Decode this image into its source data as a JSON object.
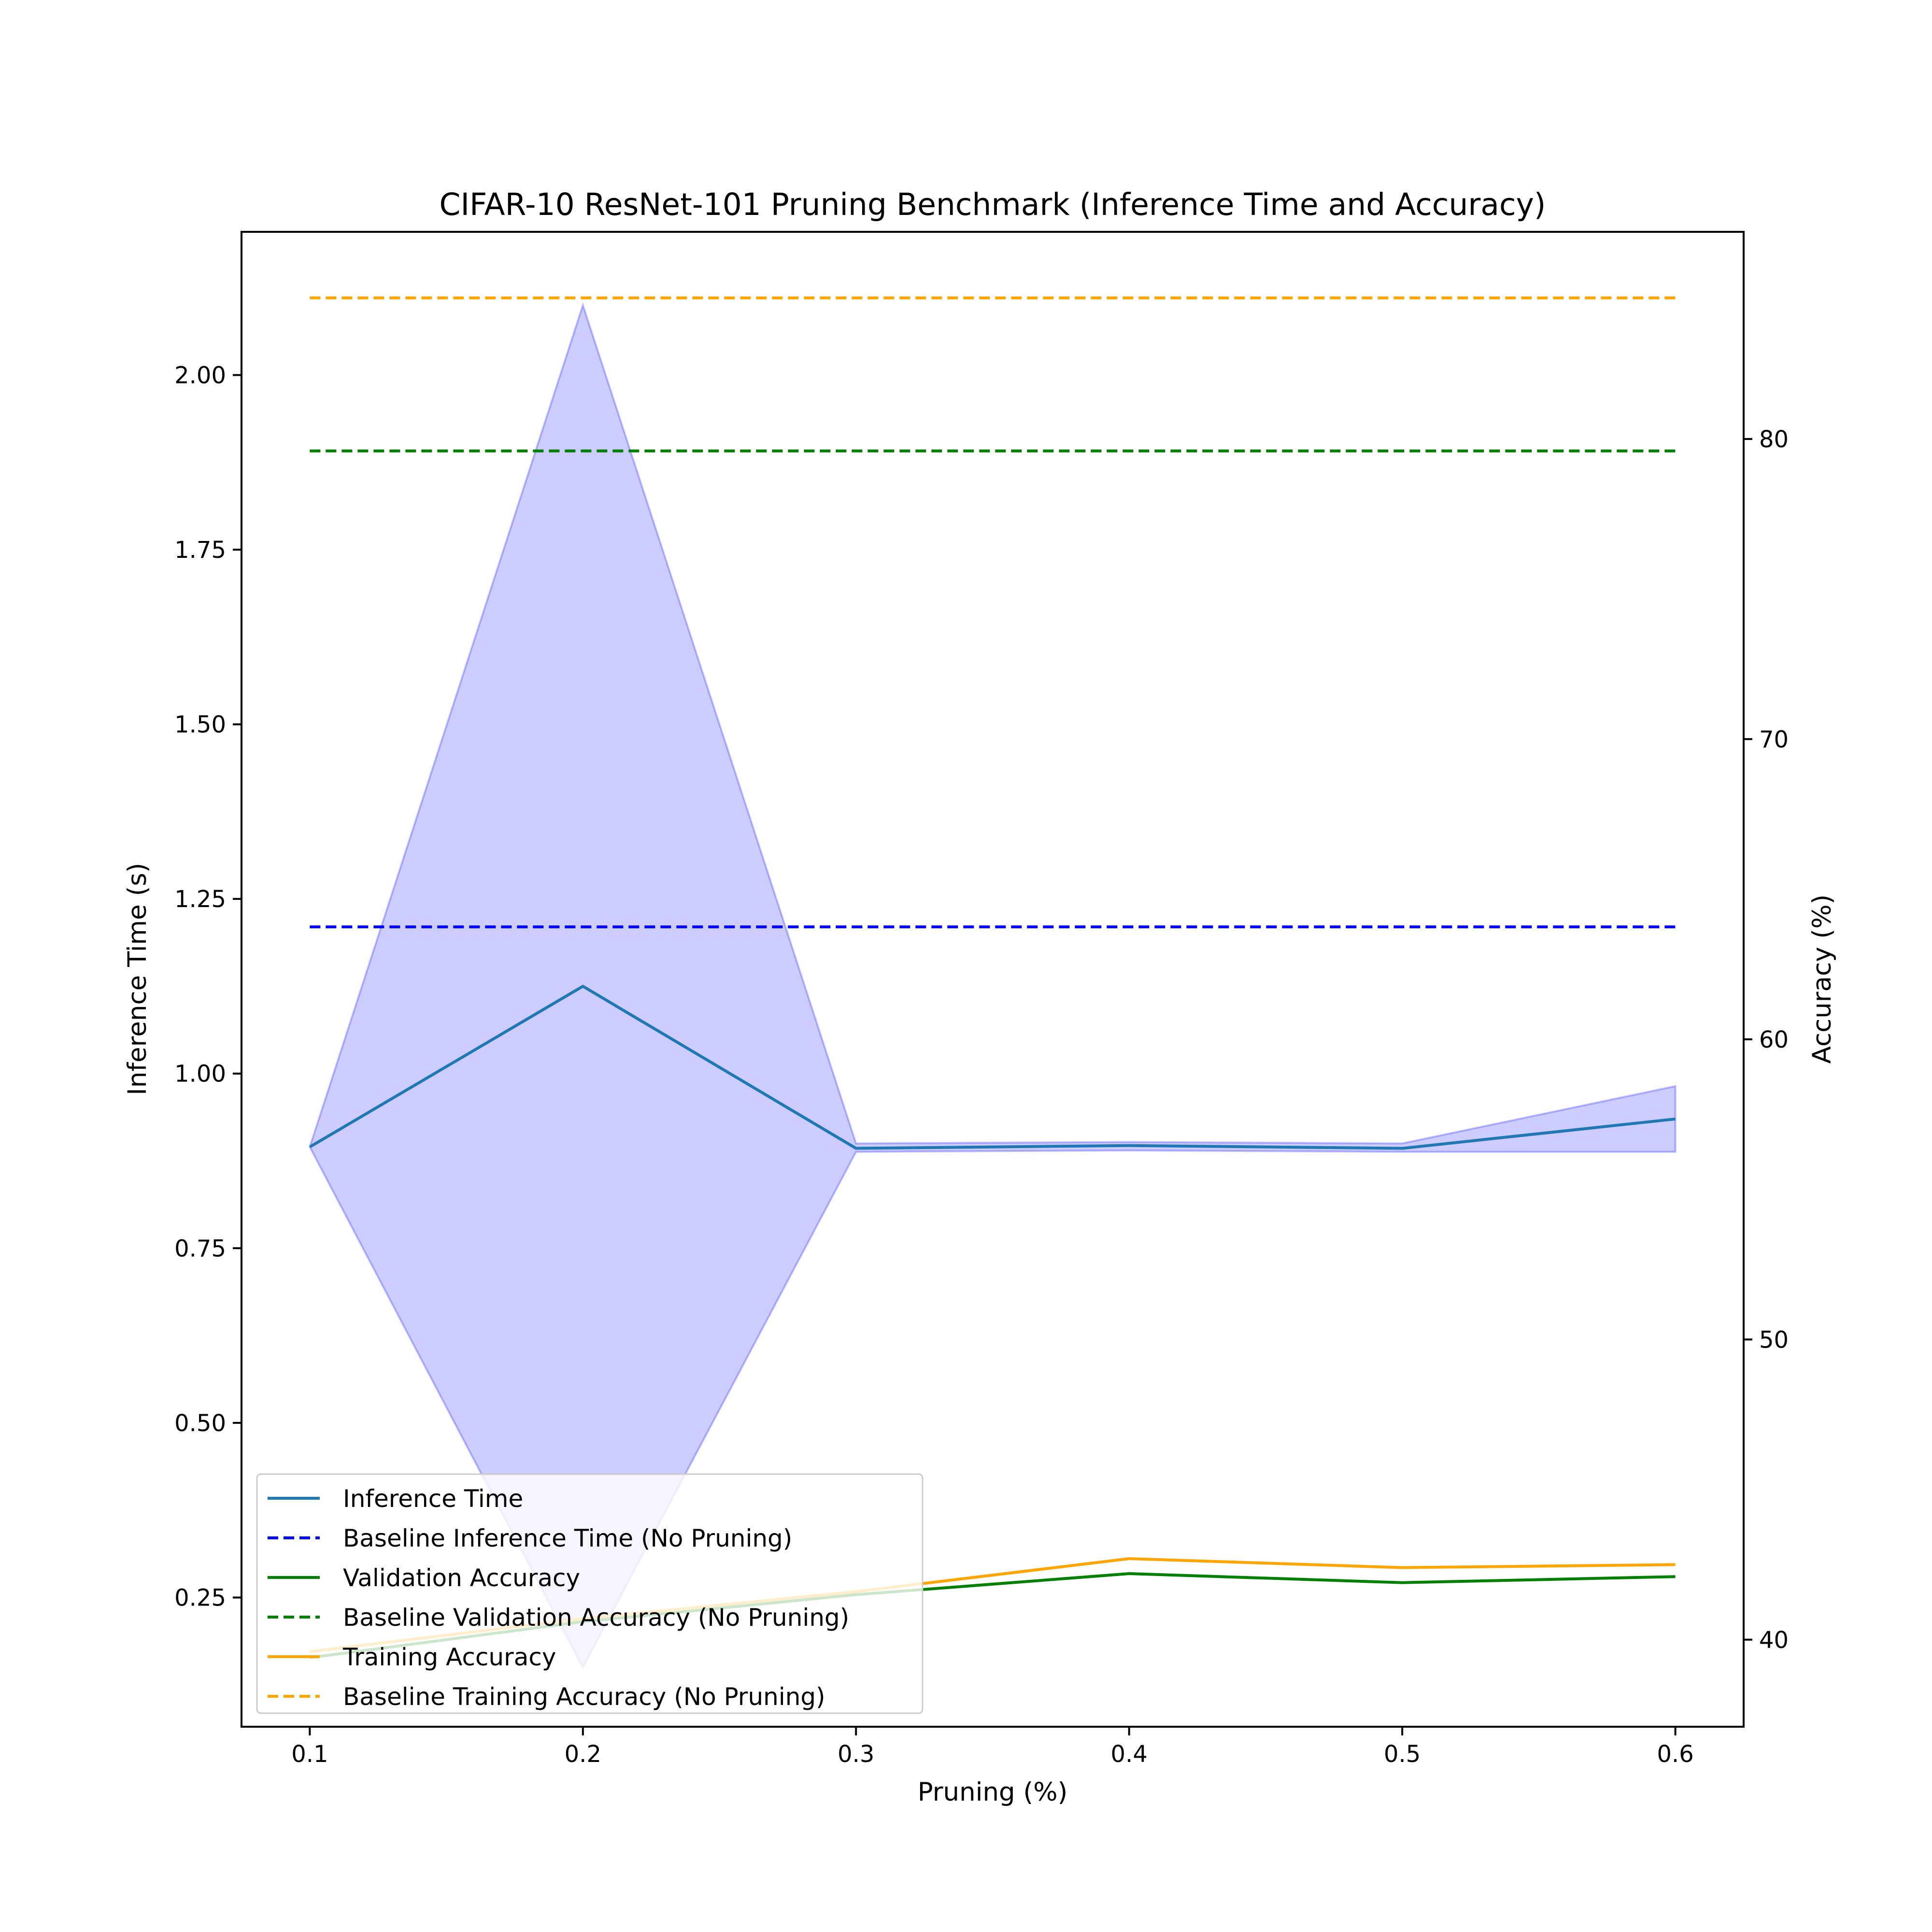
{
  "chart_data": {
    "type": "line",
    "title": "CIFAR-10 ResNet-101 Pruning Benchmark (Inference Time and Accuracy)",
    "xlabel": "Pruning (%)",
    "ylabel_left": "Inference Time (s)",
    "ylabel_right": "Accuracy (%)",
    "x": [
      0.1,
      0.2,
      0.3,
      0.4,
      0.5,
      0.6
    ],
    "x_ticks": [
      "0.1",
      "0.2",
      "0.3",
      "0.4",
      "0.5",
      "0.6"
    ],
    "xlim": [
      0.075,
      0.625
    ],
    "ylim_left": [
      0.065,
      2.205
    ],
    "ylim_right": [
      37.1,
      86.9
    ],
    "yticks_left": [
      "0.25",
      "0.50",
      "0.75",
      "1.00",
      "1.25",
      "1.50",
      "1.75",
      "2.00"
    ],
    "yticks_right": [
      "40",
      "50",
      "60",
      "70",
      "80"
    ],
    "grid": false,
    "legend_position": "lower-left",
    "series": [
      {
        "name": "Inference Time",
        "axis": "left",
        "style": "solid",
        "color": "#1f77b4",
        "values": [
          0.895,
          1.125,
          0.893,
          0.897,
          0.893,
          0.935
        ]
      },
      {
        "name": "Baseline Inference Time (No Pruning)",
        "axis": "left",
        "style": "dashed",
        "color": "#0000ff",
        "values": [
          1.21,
          1.21,
          1.21,
          1.21,
          1.21,
          1.21
        ]
      },
      {
        "name": "Validation Accuracy",
        "axis": "right",
        "style": "solid",
        "color": "#008000",
        "values": [
          39.4,
          40.6,
          41.5,
          42.2,
          41.9,
          42.1
        ]
      },
      {
        "name": "Baseline Validation Accuracy (No Pruning)",
        "axis": "right",
        "style": "dashed",
        "color": "#008000",
        "values": [
          79.6,
          79.6,
          79.6,
          79.6,
          79.6,
          79.6
        ]
      },
      {
        "name": "Training Accuracy",
        "axis": "right",
        "style": "solid",
        "color": "#ffa500",
        "values": [
          39.6,
          40.7,
          41.6,
          42.7,
          42.4,
          42.5
        ]
      },
      {
        "name": "Baseline Training Accuracy (No Pruning)",
        "axis": "right",
        "style": "dashed",
        "color": "#ffa500",
        "values": [
          84.7,
          84.7,
          84.7,
          84.7,
          84.7,
          84.7
        ]
      }
    ],
    "band": {
      "axis": "left",
      "color": "#0000ff",
      "upper": [
        0.895,
        2.1,
        0.9,
        0.902,
        0.9,
        0.982
      ],
      "lower": [
        0.895,
        0.15,
        0.888,
        0.89,
        0.888,
        0.888
      ]
    }
  }
}
